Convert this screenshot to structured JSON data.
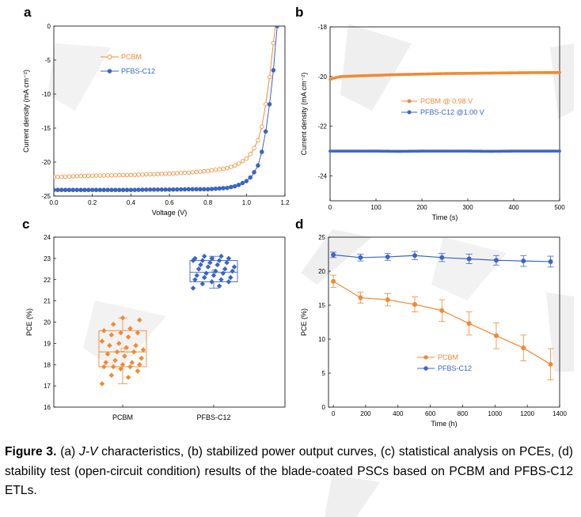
{
  "colors": {
    "pcbm": "#f08a33",
    "pfbs": "#3a66c4",
    "watermark": "#ededed"
  },
  "caption": {
    "label": "Figure 3.",
    "p1": " (a) ",
    "jv": "J-V",
    "p2": " characteristics, (b) stabilized power output curves, (c) statistical analysis on PCEs, (d) stability test (open-circuit condition) results of the blade-coated PSCs based on PCBM and PFBS-C12 ETLs."
  },
  "chart_data": [
    {
      "panel": "a",
      "type": "scatter",
      "xlabel": "Voltage (V)",
      "ylabel": "Current density (mA cm⁻²)",
      "xlim": [
        0,
        1.2
      ],
      "ylim": [
        -25,
        0
      ],
      "xticks": [
        0.0,
        0.2,
        0.4,
        0.6,
        0.8,
        1.0,
        1.2
      ],
      "yticks": [
        0,
        -5,
        -10,
        -15,
        -20,
        -25
      ],
      "xtick_labels": [
        "0.0",
        "0.2",
        "0.4",
        "0.6",
        "0.8",
        "1.0",
        "1.2"
      ],
      "ytick_labels": [
        "0",
        "-5",
        "-10",
        "-15",
        "-20",
        "-25"
      ],
      "legend": "upper-left",
      "series": [
        {
          "name": "PCBM",
          "marker": "open-circle",
          "x": [
            0,
            0.1,
            0.2,
            0.3,
            0.4,
            0.5,
            0.6,
            0.7,
            0.8,
            0.9,
            0.95,
            1.0,
            1.03,
            1.06,
            1.08,
            1.1,
            1.12,
            1.13,
            1.14,
            1.15
          ],
          "y": [
            -22.2,
            -22.1,
            -22.0,
            -21.95,
            -21.9,
            -21.8,
            -21.7,
            -21.55,
            -21.3,
            -20.9,
            -20.4,
            -19.5,
            -18.5,
            -16.8,
            -14.8,
            -11.5,
            -7.5,
            -5.0,
            -2.5,
            0
          ]
        },
        {
          "name": "PFBS-C12",
          "marker": "filled-circle",
          "x": [
            0,
            0.1,
            0.2,
            0.3,
            0.4,
            0.5,
            0.6,
            0.7,
            0.8,
            0.9,
            0.95,
            1.0,
            1.03,
            1.06,
            1.08,
            1.1,
            1.12,
            1.14,
            1.15,
            1.16
          ],
          "y": [
            -24.1,
            -24.1,
            -24.1,
            -24.1,
            -24.1,
            -24.05,
            -24.05,
            -24.0,
            -24.0,
            -23.8,
            -23.5,
            -22.8,
            -22.0,
            -20.5,
            -18.5,
            -15.5,
            -11.5,
            -6.5,
            -3.0,
            0
          ]
        }
      ]
    },
    {
      "panel": "b",
      "type": "line",
      "xlabel": "Time (s)",
      "ylabel": "Current density (mA cm⁻²)",
      "xlim": [
        0,
        500
      ],
      "ylim": [
        -25,
        -18
      ],
      "xticks": [
        0,
        100,
        200,
        300,
        400,
        500
      ],
      "yticks": [
        -18,
        -20,
        -22,
        -24
      ],
      "xtick_labels": [
        "0",
        "100",
        "200",
        "300",
        "400",
        "500"
      ],
      "ytick_labels": [
        "-18",
        "-20",
        "-22",
        "-24"
      ],
      "legend": "center-right",
      "series": [
        {
          "name": "PCBM @ 0.98 V",
          "x": [
            0,
            10,
            25,
            50,
            100,
            150,
            200,
            250,
            300,
            350,
            400,
            450,
            500
          ],
          "y": [
            -20.12,
            -20.05,
            -20.0,
            -19.98,
            -19.95,
            -19.92,
            -19.9,
            -19.88,
            -19.87,
            -19.86,
            -19.85,
            -19.84,
            -19.84
          ]
        },
        {
          "name": "PFBS-C12 @1.00 V",
          "x": [
            0,
            50,
            100,
            150,
            200,
            250,
            300,
            350,
            400,
            450,
            500
          ],
          "y": [
            -23.0,
            -23.0,
            -23.0,
            -23.01,
            -23.0,
            -23.0,
            -23.0,
            -23.01,
            -23.0,
            -23.0,
            -23.0
          ]
        }
      ]
    },
    {
      "panel": "c",
      "type": "box",
      "ylabel": "PCE (%)",
      "ylim": [
        16,
        24
      ],
      "yticks": [
        16,
        17,
        18,
        19,
        20,
        21,
        22,
        23,
        24
      ],
      "ytick_labels": [
        "16",
        "17",
        "18",
        "19",
        "20",
        "21",
        "22",
        "23",
        "24"
      ],
      "categories": [
        "PCBM",
        "PFBS-C12"
      ],
      "boxes": [
        {
          "name": "PCBM",
          "q1": 17.9,
          "median": 18.6,
          "q3": 19.6,
          "whisker_low": 17.1,
          "whisker_high": 20.2,
          "mean": 18.7,
          "points": [
            17.1,
            17.4,
            17.5,
            17.7,
            17.8,
            17.9,
            17.9,
            17.9,
            18.0,
            18.0,
            18.1,
            18.1,
            18.2,
            18.3,
            18.4,
            18.5,
            18.6,
            18.6,
            18.7,
            18.8,
            18.9,
            18.9,
            19.0,
            19.1,
            19.3,
            19.4,
            19.5,
            19.5,
            19.6,
            19.7,
            19.9,
            20.1,
            20.2
          ]
        },
        {
          "name": "PFBS-C12",
          "q1": 21.9,
          "median": 22.35,
          "q3": 22.9,
          "whisker_low": 21.6,
          "whisker_high": 23.1,
          "mean": 22.4,
          "points": [
            21.6,
            21.7,
            21.8,
            21.9,
            21.9,
            22.0,
            22.0,
            22.1,
            22.1,
            22.2,
            22.2,
            22.3,
            22.3,
            22.4,
            22.4,
            22.5,
            22.5,
            22.6,
            22.6,
            22.7,
            22.7,
            22.8,
            22.8,
            22.9,
            22.9,
            22.9,
            23.0,
            23.0,
            23.0,
            23.1,
            23.1
          ]
        }
      ]
    },
    {
      "panel": "d",
      "type": "line",
      "xlabel": "Time (h)",
      "ylabel": "PCE (%)",
      "xlim": [
        -30,
        1400
      ],
      "ylim": [
        0,
        25
      ],
      "xticks": [
        0,
        200,
        400,
        600,
        800,
        1000,
        1200,
        1400
      ],
      "yticks": [
        0,
        5,
        10,
        15,
        20,
        25
      ],
      "xtick_labels": [
        "0",
        "200",
        "400",
        "600",
        "800",
        "1000",
        "1200",
        "1400"
      ],
      "ytick_labels": [
        "0",
        "5",
        "10",
        "15",
        "20",
        "25"
      ],
      "legend": "lower-left",
      "series": [
        {
          "name": "PCBM",
          "x": [
            0,
            168,
            336,
            504,
            672,
            840,
            1008,
            1176,
            1344
          ],
          "y": [
            18.5,
            16.1,
            15.8,
            15.1,
            14.2,
            12.3,
            10.5,
            8.7,
            6.3
          ],
          "err": [
            0.9,
            0.8,
            0.9,
            1.1,
            1.6,
            1.7,
            1.9,
            1.9,
            2.3
          ]
        },
        {
          "name": "PFBS-C12",
          "x": [
            0,
            168,
            336,
            504,
            672,
            840,
            1008,
            1176,
            1344
          ],
          "y": [
            22.4,
            22.0,
            22.1,
            22.3,
            22.0,
            21.8,
            21.6,
            21.5,
            21.4
          ],
          "err": [
            0.4,
            0.5,
            0.5,
            0.6,
            0.6,
            0.7,
            0.7,
            0.8,
            0.8
          ]
        }
      ]
    }
  ]
}
